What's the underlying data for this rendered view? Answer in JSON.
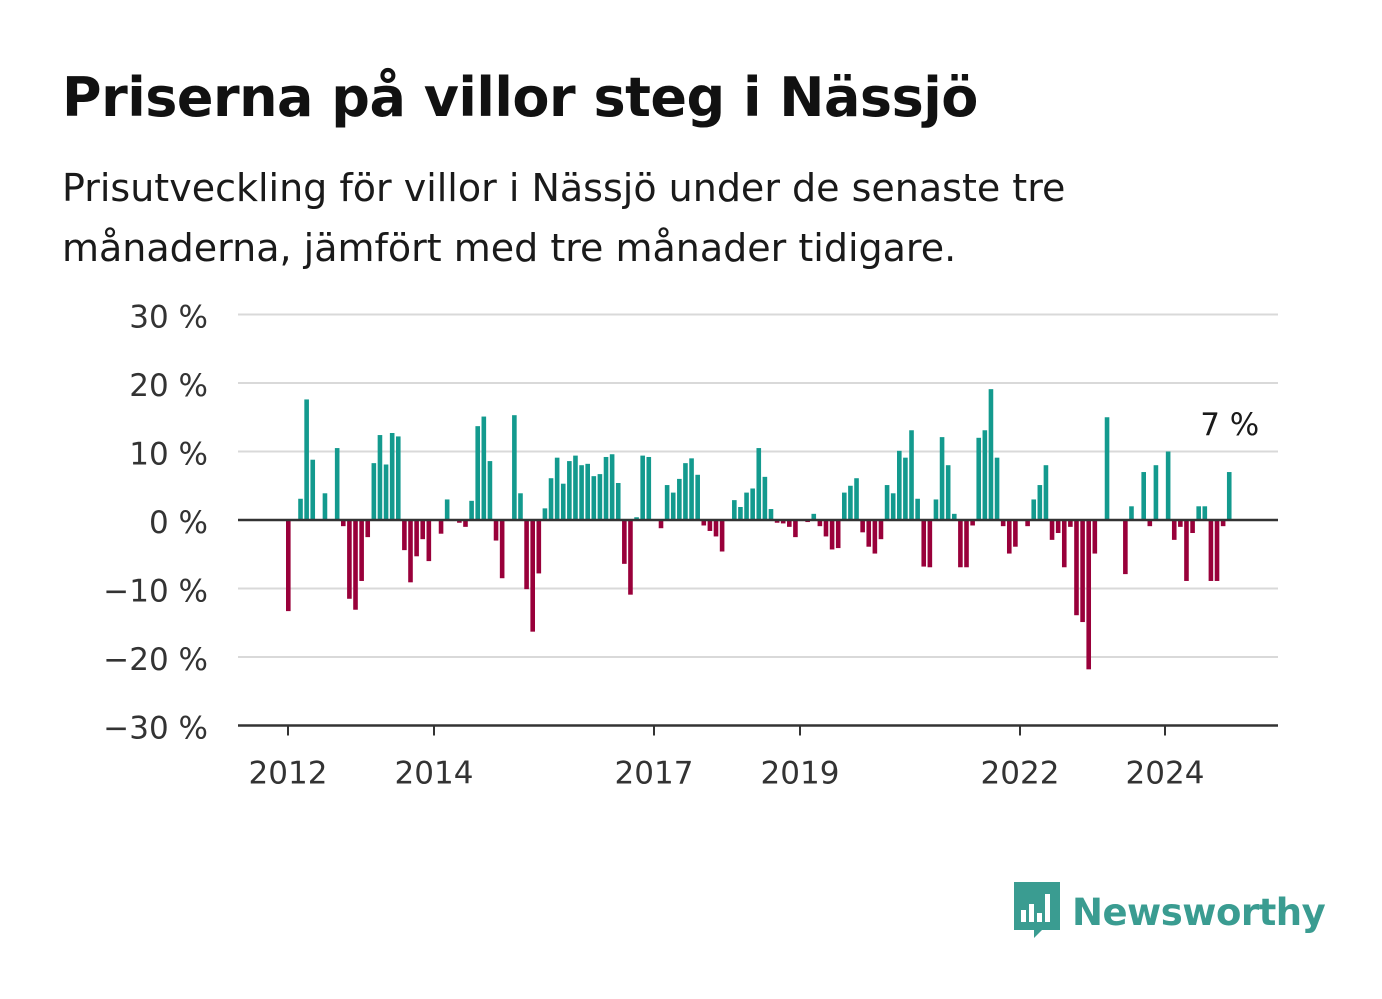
{
  "title": "Priserna på villor steg i Nässjö",
  "subtitle": "Prisutveckling för villor i Nässjö under de senaste tre månaderna, jämfört med tre månader tidigare.",
  "logo": {
    "icon": "newsworthy-logo-icon",
    "text": "Newsworthy"
  },
  "colors": {
    "positive": "#139a8e",
    "negative": "#99003a",
    "grid": "#d9d9d9",
    "axis": "#333333",
    "logo": "#3a9c91"
  },
  "chart_data": {
    "type": "bar",
    "title": "Priserna på villor steg i Nässjö",
    "ylabel": "",
    "xlabel": "",
    "ylim": [
      -30,
      30
    ],
    "y_ticks": [
      {
        "value": 30,
        "label": "30 %"
      },
      {
        "value": 20,
        "label": "20 %"
      },
      {
        "value": 10,
        "label": "10 %"
      },
      {
        "value": 0,
        "label": "0 %"
      },
      {
        "value": -10,
        "label": "−10 %"
      },
      {
        "value": -20,
        "label": "−20 %"
      },
      {
        "value": -30,
        "label": "−30 %"
      }
    ],
    "x_ticks": [
      "2012",
      "2014",
      "2017",
      "2019",
      "2022",
      "2024"
    ],
    "grid": true,
    "last_value_label": "7 %",
    "series": [
      {
        "values": [
          -13.3,
          0.0,
          3.1,
          17.6,
          8.8,
          0.0,
          3.9,
          0.0,
          10.5,
          -0.9,
          -11.5,
          -13.1,
          -8.9,
          -2.5,
          8.3,
          12.4,
          8.1,
          12.7,
          12.2,
          -4.4,
          -9.1,
          -5.3,
          -2.8,
          -6.0,
          0.0,
          -2.0,
          3.0,
          0.0,
          -0.4,
          -1.0,
          2.8,
          13.7,
          15.1,
          8.6,
          -3.0,
          -8.5,
          0.0,
          15.3,
          3.9,
          -10.1,
          -16.3,
          -7.8,
          1.7,
          6.1,
          9.1,
          5.3,
          8.6,
          9.4,
          8.0,
          8.2,
          6.4,
          6.7,
          9.2,
          9.6,
          5.4,
          -6.4,
          -10.9,
          0.4,
          9.4,
          9.2,
          0.0,
          -1.2,
          5.1,
          4.0,
          6.0,
          8.3,
          9.0,
          6.6,
          -0.8,
          -1.6,
          -2.4,
          -4.6,
          0.0,
          2.9,
          1.9,
          4.0,
          4.6,
          10.5,
          6.3,
          1.6,
          -0.4,
          -0.5,
          -1.0,
          -2.5,
          0.0,
          -0.3,
          0.9,
          -0.9,
          -2.4,
          -4.3,
          -4.1,
          4.0,
          5.0,
          6.1,
          -1.8,
          -3.9,
          -4.9,
          -2.8,
          5.1,
          3.9,
          10.1,
          9.1,
          13.1,
          3.1,
          -6.8,
          -6.9,
          3.0,
          12.1,
          8.0,
          0.9,
          -6.9,
          -6.9,
          -0.8,
          12.0,
          13.1,
          19.1,
          9.1,
          -0.9,
          -4.9,
          -3.9,
          0.0,
          -0.9,
          3.0,
          5.1,
          8.0,
          -2.9,
          -1.9,
          -6.9,
          -1.0,
          -13.9,
          -14.9,
          -21.8,
          -4.9,
          0.0,
          15.0,
          0.0,
          0.0,
          -7.9,
          2.0,
          0.0,
          7.0,
          -0.9,
          8.0,
          0.0,
          10.0,
          -2.9,
          -1.0,
          -8.9,
          -1.9,
          2.0,
          2.0,
          -8.9,
          -8.9,
          -0.9,
          7.0
        ]
      }
    ]
  }
}
